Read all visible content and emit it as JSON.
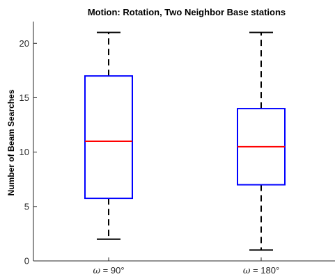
{
  "chart_data": {
    "type": "box",
    "title": "Motion: Rotation, Two Neighbor Base stations",
    "xlabel": "",
    "ylabel": "Number of Beam Searches",
    "ylim": [
      0,
      22
    ],
    "yticks": [
      0,
      5,
      10,
      15,
      20
    ],
    "grid": false,
    "categories": [
      {
        "symbol": "ω",
        "rest": " = 90°",
        "label": "ω = 90°"
      },
      {
        "symbol": "ω",
        "rest": " = 180°",
        "label": "ω = 180°"
      }
    ],
    "boxes": [
      {
        "category": "ω = 90°",
        "min": 2,
        "q1": 5.75,
        "median": 11,
        "q3": 17,
        "max": 21
      },
      {
        "category": "ω = 180°",
        "min": 1,
        "q1": 7,
        "median": 10.5,
        "q3": 14,
        "max": 21
      }
    ],
    "colors": {
      "box": "#0000ff",
      "median": "#ff0000",
      "whisker": "#000000",
      "axis": "#262626"
    }
  }
}
